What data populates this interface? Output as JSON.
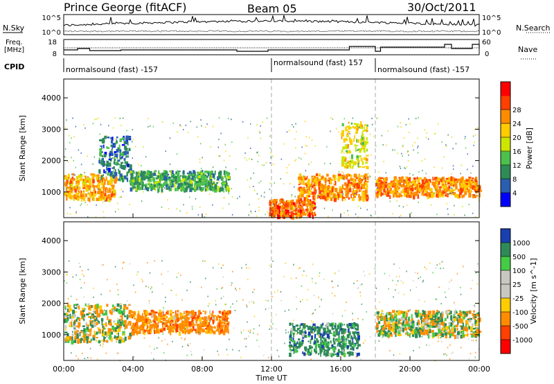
{
  "header": {
    "station": "Prince George (fitACF)",
    "beam": "Beam 05",
    "date": "30/Oct/2011"
  },
  "top_panels": {
    "nsky_label": "N.Sky",
    "nsky_ticks": [
      "10^5",
      "10^0"
    ],
    "nsearch_label": "N.Search",
    "nsearch_ticks": [
      "10^5",
      "10^0"
    ],
    "freq_label_1": "Freq.",
    "freq_label_2": "[MHz]",
    "freq_ticks": [
      "18",
      "8"
    ],
    "nave_label": "Nave",
    "nave_ticks": [
      "60",
      "0"
    ],
    "cpid_label": "CPID",
    "cpid_segments": [
      {
        "label": "normalsound (fast) -157",
        "start": 0,
        "end": 12
      },
      {
        "label": "normalsound (fast) 157",
        "start": 12,
        "end": 18
      },
      {
        "label": "normalsound (fast) -157",
        "start": 18,
        "end": 24
      }
    ]
  },
  "chart_data": [
    {
      "type": "heatmap",
      "title": "",
      "xlabel": "Time UT",
      "ylabel": "Slant Range [km]",
      "xlim": [
        0,
        24
      ],
      "ylim": [
        180,
        4600
      ],
      "x_ticks": [
        "00:00",
        "04:00",
        "08:00",
        "12:00",
        "16:00",
        "20:00",
        "00:00"
      ],
      "y_ticks": [
        1000,
        2000,
        3000,
        4000
      ],
      "colorbar": {
        "label": "Power [dB]",
        "ticks": [
          4,
          8,
          12,
          16,
          20,
          24,
          28
        ],
        "colors": [
          "#0000ff",
          "#2a5fb0",
          "#2e8b57",
          "#4cc24c",
          "#cce600",
          "#ffcc00",
          "#ff8c00",
          "#ff4000",
          "#ff0000"
        ]
      },
      "regions": [
        {
          "t0": 0.0,
          "t1": 3.0,
          "r0": 800,
          "r1": 1600,
          "value": 24
        },
        {
          "t0": 2.0,
          "t1": 3.8,
          "r0": 1400,
          "r1": 2800,
          "value": 8
        },
        {
          "t0": 3.8,
          "t1": 9.5,
          "r0": 1100,
          "r1": 1700,
          "value": 12
        },
        {
          "t0": 11.8,
          "t1": 14.5,
          "r0": 250,
          "r1": 800,
          "value": 28
        },
        {
          "t0": 13.5,
          "t1": 17.5,
          "r0": 800,
          "r1": 1600,
          "value": 26
        },
        {
          "t0": 16.0,
          "t1": 17.5,
          "r0": 1800,
          "r1": 3300,
          "value": 20
        },
        {
          "t0": 18.0,
          "t1": 24.0,
          "r0": 900,
          "r1": 1500,
          "value": 26
        }
      ]
    },
    {
      "type": "heatmap",
      "title": "",
      "xlabel": "Time UT",
      "ylabel": "Slant Range [km]",
      "xlim": [
        0,
        24
      ],
      "ylim": [
        180,
        4600
      ],
      "x_ticks": [
        "00:00",
        "04:00",
        "08:00",
        "12:00",
        "16:00",
        "20:00",
        "00:00"
      ],
      "y_ticks": [
        1000,
        2000,
        3000,
        4000
      ],
      "colorbar": {
        "label": "Velocity [m s^-1]",
        "ticks": [
          1000,
          500,
          100,
          25,
          -25,
          -100,
          -500,
          -1000
        ],
        "colors": [
          "#1a3fb0",
          "#2e8b57",
          "#44cc44",
          "#c8c8c0",
          "#c8c8c0",
          "#ffcc00",
          "#ff8c00",
          "#ff4000",
          "#ff0000"
        ]
      },
      "regions": [
        {
          "t0": 0.0,
          "t1": 3.8,
          "r0": 800,
          "r1": 2000,
          "value": 0
        },
        {
          "t0": 3.8,
          "t1": 9.5,
          "r0": 1100,
          "r1": 1800,
          "value": -300
        },
        {
          "t0": 13.0,
          "t1": 17.0,
          "r0": 400,
          "r1": 1400,
          "value": 300
        },
        {
          "t0": 18.0,
          "t1": 24.0,
          "r0": 1000,
          "r1": 1800,
          "value": 0
        }
      ]
    }
  ]
}
